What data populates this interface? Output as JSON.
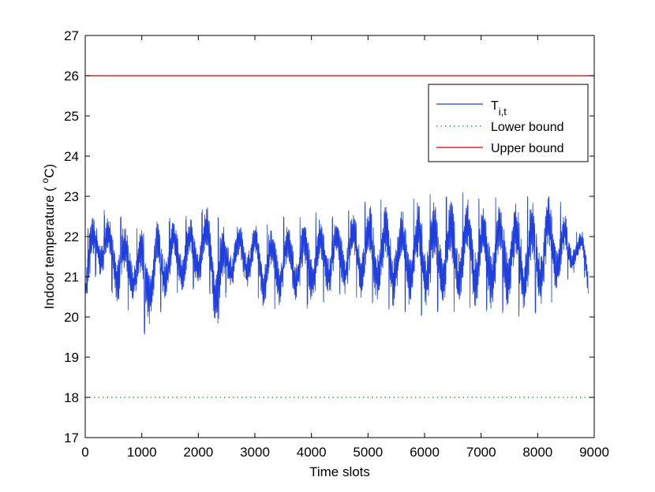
{
  "chart_data": {
    "type": "line",
    "title": "",
    "xlabel": "Time slots",
    "ylabel_main": "Indoor temperature ( ",
    "ylabel_sup": "o",
    "ylabel_unit": "C)",
    "xlim": [
      0,
      9000
    ],
    "ylim": [
      17,
      27
    ],
    "xticks": [
      "0",
      "1000",
      "2000",
      "3000",
      "4000",
      "5000",
      "6000",
      "7000",
      "8000",
      "9000"
    ],
    "yticks": [
      "17",
      "18",
      "19",
      "20",
      "21",
      "22",
      "23",
      "24",
      "25",
      "26",
      "27"
    ],
    "grid": false,
    "legend_position": "top-right",
    "legend": [
      {
        "main": "T",
        "sub": "i,t",
        "style": "solid",
        "color": "#1f3fdf"
      },
      {
        "main": "Lower bound",
        "sub": "",
        "style": "dotted",
        "color": "#00a000"
      },
      {
        "main": "Upper bound",
        "sub": "",
        "style": "solid",
        "color": "#cc0000"
      }
    ],
    "series": [
      {
        "name": "T_i,t",
        "color": "#1f3fdf",
        "x_end": 8900,
        "daily_period": 288,
        "envelope": {
          "x": [
            0,
            100,
            200,
            600,
            700,
            950,
            1000,
            1500,
            2000,
            2200,
            2380,
            2500,
            3000,
            3150,
            3500,
            4000,
            4500,
            5000,
            5400,
            5600,
            6000,
            6300,
            6800,
            7000,
            7300,
            7800,
            8200,
            8300,
            8600,
            8800,
            8900
          ],
          "low": [
            20.2,
            20.1,
            21.1,
            20.2,
            20.1,
            20.3,
            19.4,
            20.4,
            20.7,
            20.6,
            18.8,
            20.6,
            20.7,
            20.0,
            20.2,
            20.2,
            20.5,
            20.3,
            20.1,
            20.1,
            20.0,
            20.1,
            20.1,
            20.1,
            20.0,
            20.0,
            20.1,
            20.3,
            21.0,
            21.1,
            20.2
          ],
          "high": [
            21.8,
            22.7,
            22.7,
            22.6,
            22.4,
            22.2,
            22.6,
            22.5,
            22.6,
            22.9,
            22.5,
            22.4,
            22.4,
            22.4,
            22.5,
            22.6,
            22.6,
            22.9,
            23.0,
            22.8,
            23.1,
            23.0,
            23.2,
            22.9,
            23.1,
            23.0,
            23.2,
            23.2,
            22.3,
            22.2,
            21.9
          ]
        }
      },
      {
        "name": "Lower bound",
        "color": "#00a000",
        "x": [
          0,
          9000
        ],
        "y": [
          18,
          18
        ]
      },
      {
        "name": "Upper bound",
        "color": "#cc0000",
        "x": [
          0,
          9000
        ],
        "y": [
          26,
          26
        ]
      }
    ]
  }
}
